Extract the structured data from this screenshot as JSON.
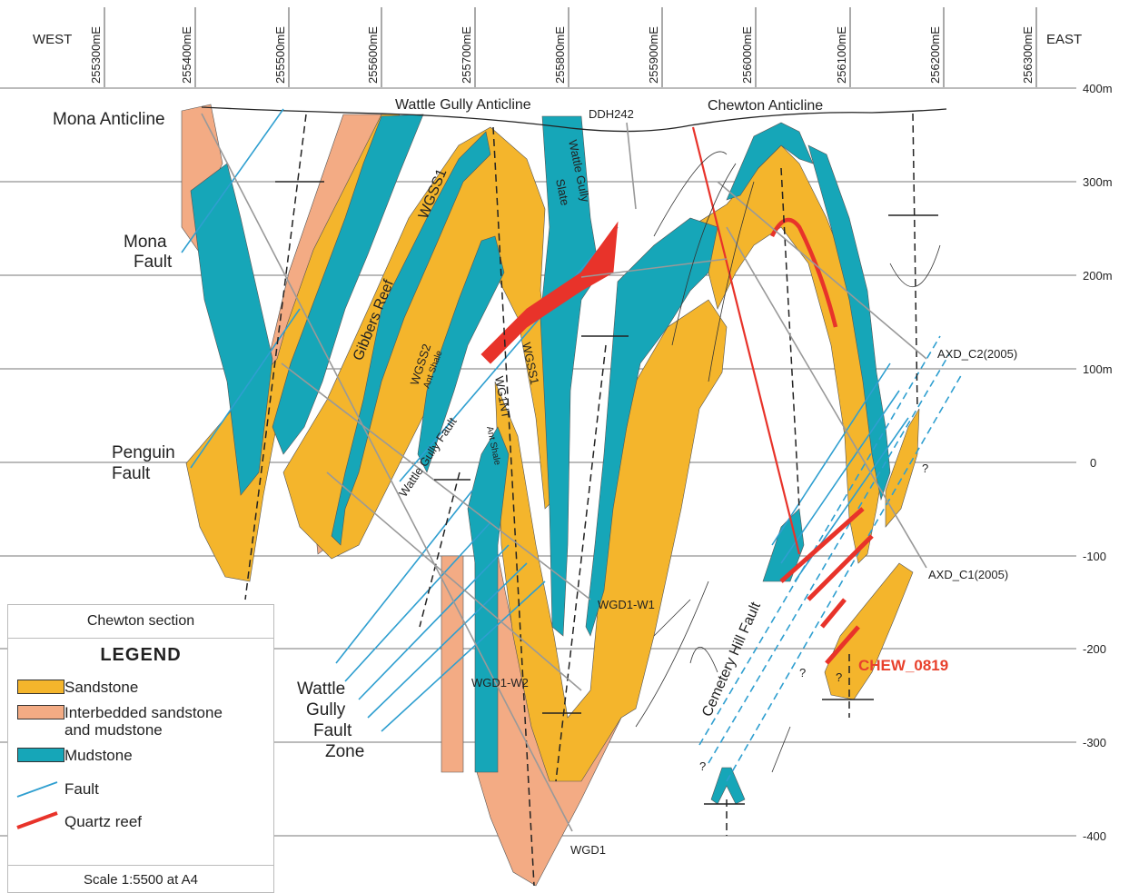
{
  "header": {
    "west": "WEST",
    "east": "EAST",
    "eastings": [
      "255300mE",
      "255400mE",
      "255500mE",
      "255600mE",
      "255700mE",
      "255800mE",
      "255900mE",
      "256000mE",
      "256100mE",
      "256200mE",
      "256300mE"
    ]
  },
  "elevations": [
    "400m",
    "300m",
    "200m",
    "100m",
    "0",
    "-100",
    "-200",
    "-300",
    "-400"
  ],
  "labels": {
    "mona_anticline": "Mona Anticline",
    "wattle_gully_anticline": "Wattle Gully Anticline",
    "ddh242": "DDH242",
    "chewton_anticline": "Chewton Anticline",
    "mona_fault_1": "Mona",
    "mona_fault_2": "Fault",
    "penguin_fault_1": "Penguin",
    "penguin_fault_2": "Fault",
    "wgss1": "WGSS1",
    "gibbers_reef": "Gibbers Reef",
    "wattle_gully_slate_1": "Wattle Gully",
    "wattle_gully_slate_2": "Slate",
    "wgss2": "WGSS2",
    "ant_shale_1": "Ant Shale",
    "wattle_gully_fault": "Wattle Gully Fault",
    "wgss1_lower": "WGSS1",
    "wg1nt": "WG1NT",
    "ant_shale_2": "Ant Shale",
    "wgd1_w1": "WGD1-W1",
    "wgd1_w2": "WGD1-W2",
    "wgd1": "WGD1",
    "fault_zone_1": "Wattle",
    "fault_zone_2": "Gully",
    "fault_zone_3": "Fault",
    "fault_zone_4": "Zone",
    "cemetery_hill_fault": "Cemetery Hill Fault",
    "chew_0819": "CHEW_0819",
    "axd_c2": "AXD_C2(2005)",
    "axd_c1": "AXD_C1(2005)",
    "q1": "?",
    "q2": "?",
    "q3": "?",
    "q4": "?"
  },
  "legend": {
    "section": "Chewton section",
    "title": "LEGEND",
    "sandstone": "Sandstone",
    "interbedded_1": "Interbedded sandstone",
    "interbedded_2": "and mudstone",
    "mudstone": "Mudstone",
    "fault": "Fault",
    "quartz_reef": "Quartz reef",
    "scale": "Scale 1:5500 at A4"
  },
  "colors": {
    "sandstone": "#f4b52c",
    "interbedded": "#f3ab84",
    "mudstone": "#16a6b8",
    "fault": "#2f9fd0",
    "quartz_reef": "#e8332a"
  }
}
